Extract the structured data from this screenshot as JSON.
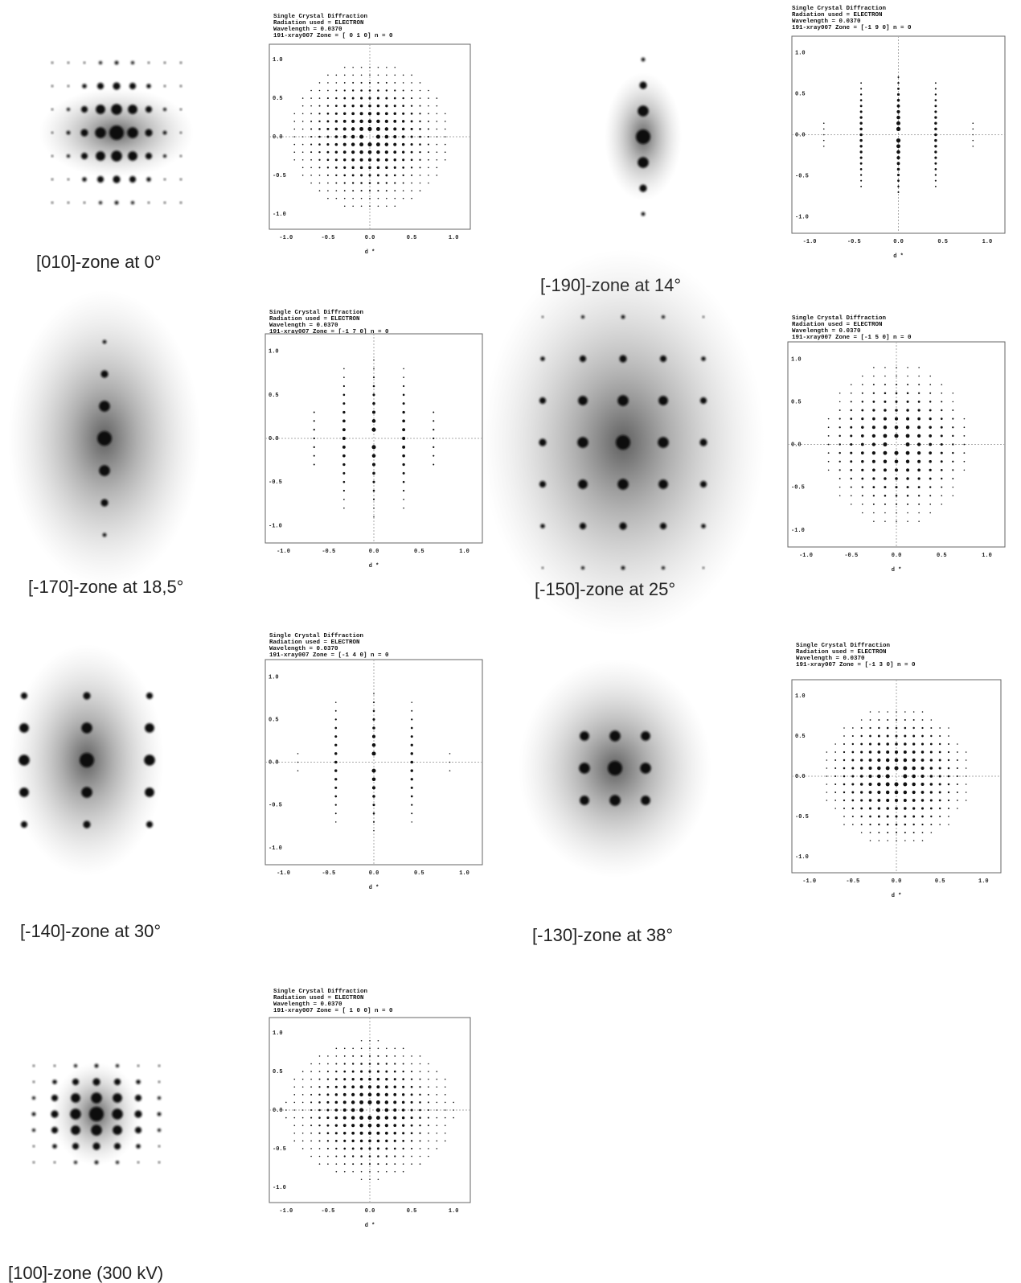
{
  "header_lines": [
    "Single Crystal Diffraction",
    "Radiation used = ELECTRON",
    "Wavelength    =  0.0370"
  ],
  "axis": {
    "xticks": [
      "-1.0",
      "-0.5",
      "0.0",
      "0.5",
      "1.0"
    ],
    "yticks": [
      "1.0",
      "0.5",
      "0.0",
      "-0.5",
      "-1.0"
    ],
    "xlabel": "d *"
  },
  "panels": [
    {
      "caption": "[010]-zone at 0°",
      "zone_line": "191-xray007  Zone = [ 0  1  0]  n = 0"
    },
    {
      "caption": "[-190]-zone at 14°",
      "zone_line": "191-xray007  Zone = [-1  9  0]  n = 0"
    },
    {
      "caption": "[-170]-zone at 18,5°",
      "zone_line": "191-xray007  Zone = [-1  7  0]  n = 0"
    },
    {
      "caption": "[-150]-zone at 25°",
      "zone_line": "191-xray007  Zone = [-1  5  0]  n = 0"
    },
    {
      "caption": "[-140]-zone at 30°",
      "zone_line": "191-xray007  Zone = [-1  4  0]  n = 0"
    },
    {
      "caption": "[-130]-zone at 38°",
      "zone_line": "191-xray007  Zone = [-1  3  0]  n = 0"
    },
    {
      "caption": "[100]-zone (300 kV)",
      "zone_line": "191-xray007  Zone = [ 1  0  0]  n = 0"
    }
  ]
}
